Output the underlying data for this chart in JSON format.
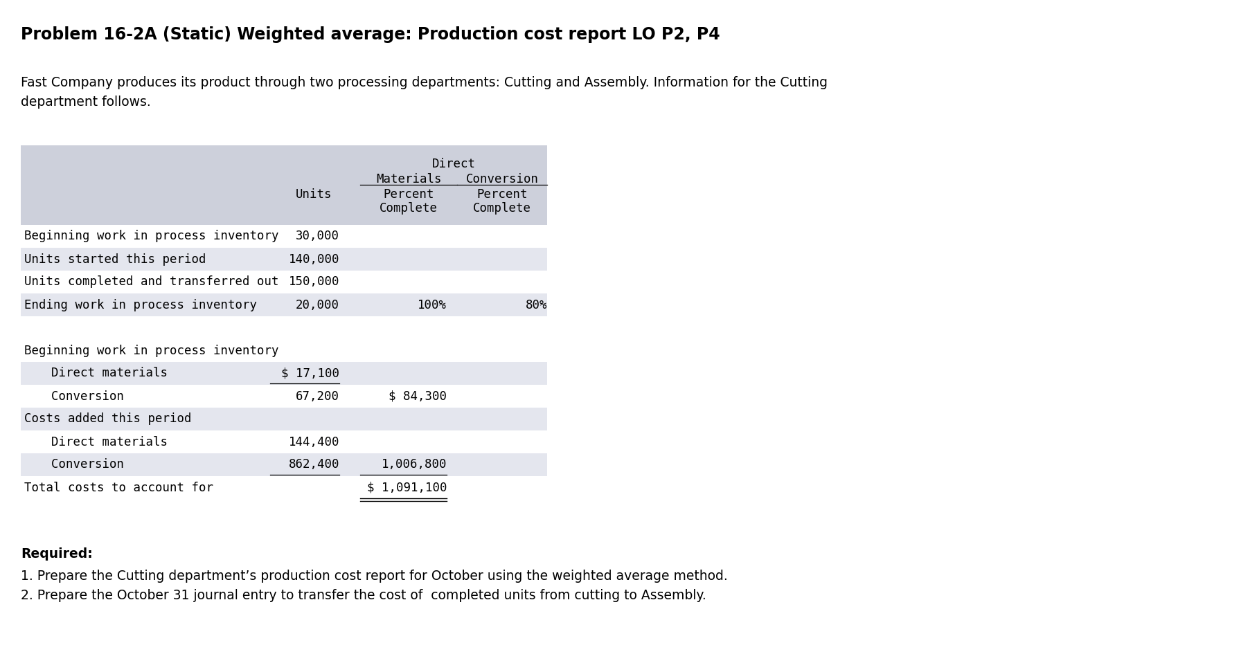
{
  "title": "Problem 16-2A (Static) Weighted average: Production cost report LO P2, P4",
  "description_line1": "Fast Company produces its product through two processing departments: Cutting and Assembly. Information for the Cutting",
  "description_line2": "department follows.",
  "bg_color": "#ffffff",
  "table_header_bg": "#cdd0db",
  "table_row_alt_bg": "#e4e6ee",
  "data_rows": [
    {
      "label": "Beginning work in process inventory",
      "indent": 0,
      "units": "30,000",
      "dm": "",
      "conv": "",
      "bg": "#ffffff",
      "ul_units": false,
      "ul_dm": false
    },
    {
      "label": "Units started this period",
      "indent": 0,
      "units": "140,000",
      "dm": "",
      "conv": "",
      "bg": "#e4e6ee",
      "ul_units": false,
      "ul_dm": false
    },
    {
      "label": "Units completed and transferred out",
      "indent": 0,
      "units": "150,000",
      "dm": "",
      "conv": "",
      "bg": "#ffffff",
      "ul_units": false,
      "ul_dm": false
    },
    {
      "label": "Ending work in process inventory",
      "indent": 0,
      "units": "20,000",
      "dm": "100%",
      "conv": "80%",
      "bg": "#e4e6ee",
      "ul_units": false,
      "ul_dm": false
    },
    {
      "label": "",
      "indent": 0,
      "units": "",
      "dm": "",
      "conv": "",
      "bg": "#ffffff",
      "ul_units": false,
      "ul_dm": false
    },
    {
      "label": "Beginning work in process inventory",
      "indent": 0,
      "units": "",
      "dm": "",
      "conv": "",
      "bg": "#ffffff",
      "ul_units": false,
      "ul_dm": false
    },
    {
      "label": "  Direct materials",
      "indent": 1,
      "units": "$ 17,100",
      "dm": "",
      "conv": "",
      "bg": "#e4e6ee",
      "ul_units": true,
      "ul_dm": false
    },
    {
      "label": "  Conversion",
      "indent": 1,
      "units": "67,200",
      "dm": "$ 84,300",
      "conv": "",
      "bg": "#ffffff",
      "ul_units": false,
      "ul_dm": false
    },
    {
      "label": "Costs added this period",
      "indent": 0,
      "units": "",
      "dm": "",
      "conv": "",
      "bg": "#e4e6ee",
      "ul_units": false,
      "ul_dm": false
    },
    {
      "label": "  Direct materials",
      "indent": 1,
      "units": "144,400",
      "dm": "",
      "conv": "",
      "bg": "#ffffff",
      "ul_units": false,
      "ul_dm": false
    },
    {
      "label": "  Conversion",
      "indent": 1,
      "units": "862,400",
      "dm": "1,006,800",
      "conv": "",
      "bg": "#e4e6ee",
      "ul_units": true,
      "ul_dm": true
    },
    {
      "label": "Total costs to account for",
      "indent": 0,
      "units": "",
      "dm": "$ 1,091,100",
      "conv": "",
      "bg": "#ffffff",
      "ul_units": false,
      "ul_dm": false
    }
  ],
  "required_label": "Required:",
  "req1": "1. Prepare the Cutting department’s production cost report for October using the weighted average method.",
  "req2": "2. Prepare the October 31 journal entry to transfer the cost of  completed units from cutting to Assembly."
}
